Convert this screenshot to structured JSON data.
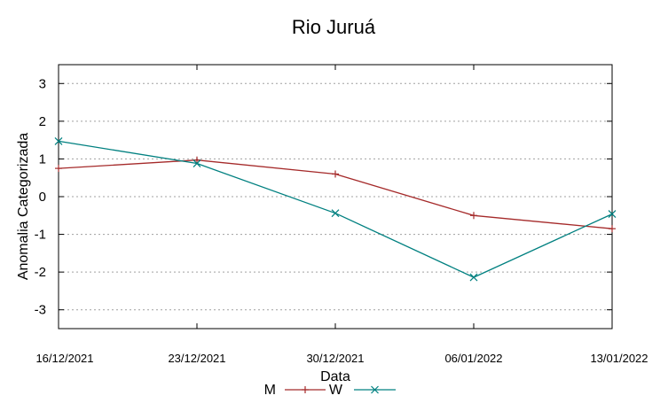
{
  "chart_data": {
    "type": "line",
    "title": "Rio Juruá",
    "xlabel": "Data",
    "ylabel": "Anomalia Categorizada",
    "categories": [
      "16/12/2021",
      "23/12/2021",
      "30/12/2021",
      "06/01/2022",
      "13/01/2022"
    ],
    "ylim": [
      -3.5,
      3.5
    ],
    "yticks": [
      "-3",
      "-2",
      "-1",
      "0",
      "1",
      "2",
      "3"
    ],
    "grid": true,
    "legend_position": "bottom",
    "series": [
      {
        "name": "M",
        "values": [
          0.75,
          0.97,
          0.6,
          -0.5,
          -0.85
        ],
        "color": "#a52a2a",
        "marker": "plus"
      },
      {
        "name": "W",
        "values": [
          1.47,
          0.88,
          -0.44,
          -2.14,
          -0.46
        ],
        "color": "#008080",
        "marker": "cross"
      }
    ]
  }
}
